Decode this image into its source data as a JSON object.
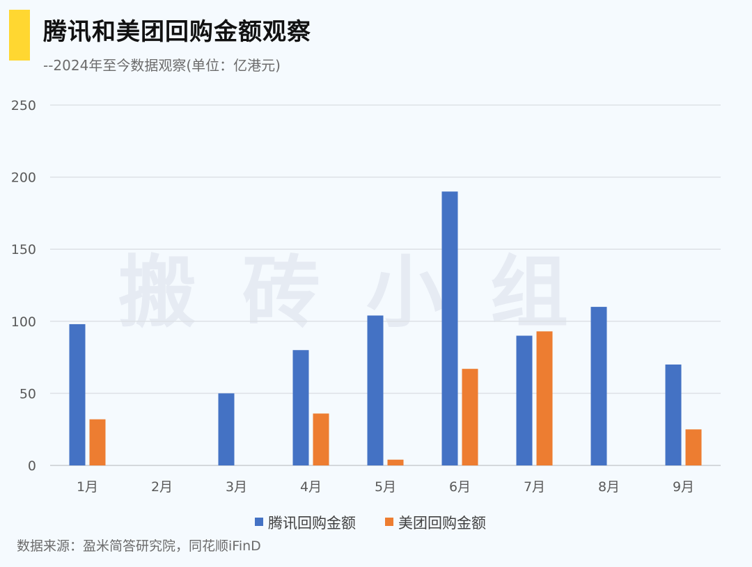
{
  "header": {
    "title": "腾讯和美团回购金额观察",
    "subtitle": "--2024年至今数据观察(单位：亿港元)",
    "accent_color": "#ffd731"
  },
  "watermark": "搬砖小组",
  "footer": {
    "source": "数据来源：盈米简答研究院，同花顺iFinD"
  },
  "chart_data": {
    "type": "bar",
    "categories": [
      "1月",
      "2月",
      "3月",
      "4月",
      "5月",
      "6月",
      "7月",
      "8月",
      "9月"
    ],
    "series": [
      {
        "name": "腾讯回购金额",
        "color": "#4472c4",
        "values": [
          98,
          0,
          50,
          80,
          104,
          190,
          90,
          110,
          70
        ]
      },
      {
        "name": "美团回购金额",
        "color": "#ed7d31",
        "values": [
          32,
          0,
          0,
          36,
          4,
          67,
          93,
          0,
          25
        ]
      }
    ],
    "ylim": [
      0,
      250
    ],
    "yticks": [
      "0",
      "50",
      "100",
      "150",
      "200",
      "250"
    ],
    "grid": true,
    "legend_position": "bottom"
  }
}
